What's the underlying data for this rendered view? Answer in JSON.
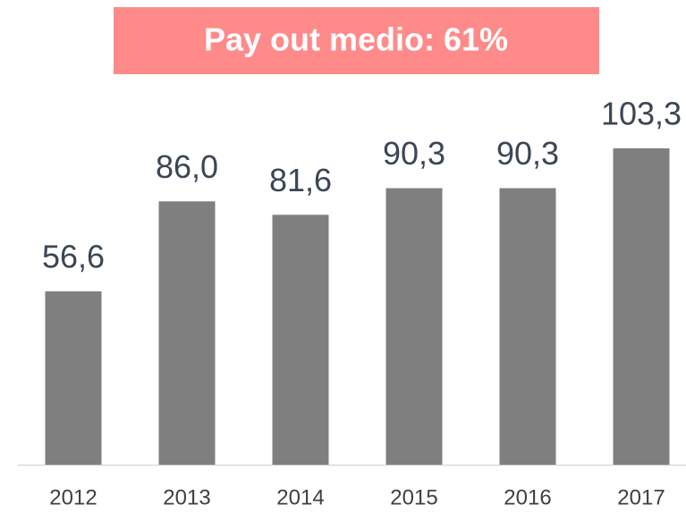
{
  "chart_data": {
    "type": "bar",
    "title": "Pay out medio: 61%",
    "categories": [
      "2012",
      "2013",
      "2014",
      "2015",
      "2016",
      "2017"
    ],
    "values": [
      56.6,
      86.0,
      81.6,
      90.3,
      90.3,
      103.3
    ],
    "value_labels": [
      "56,6",
      "86,0",
      "81,6",
      "90,3",
      "90,3",
      "103,3"
    ],
    "color": "#7f7f7f"
  }
}
